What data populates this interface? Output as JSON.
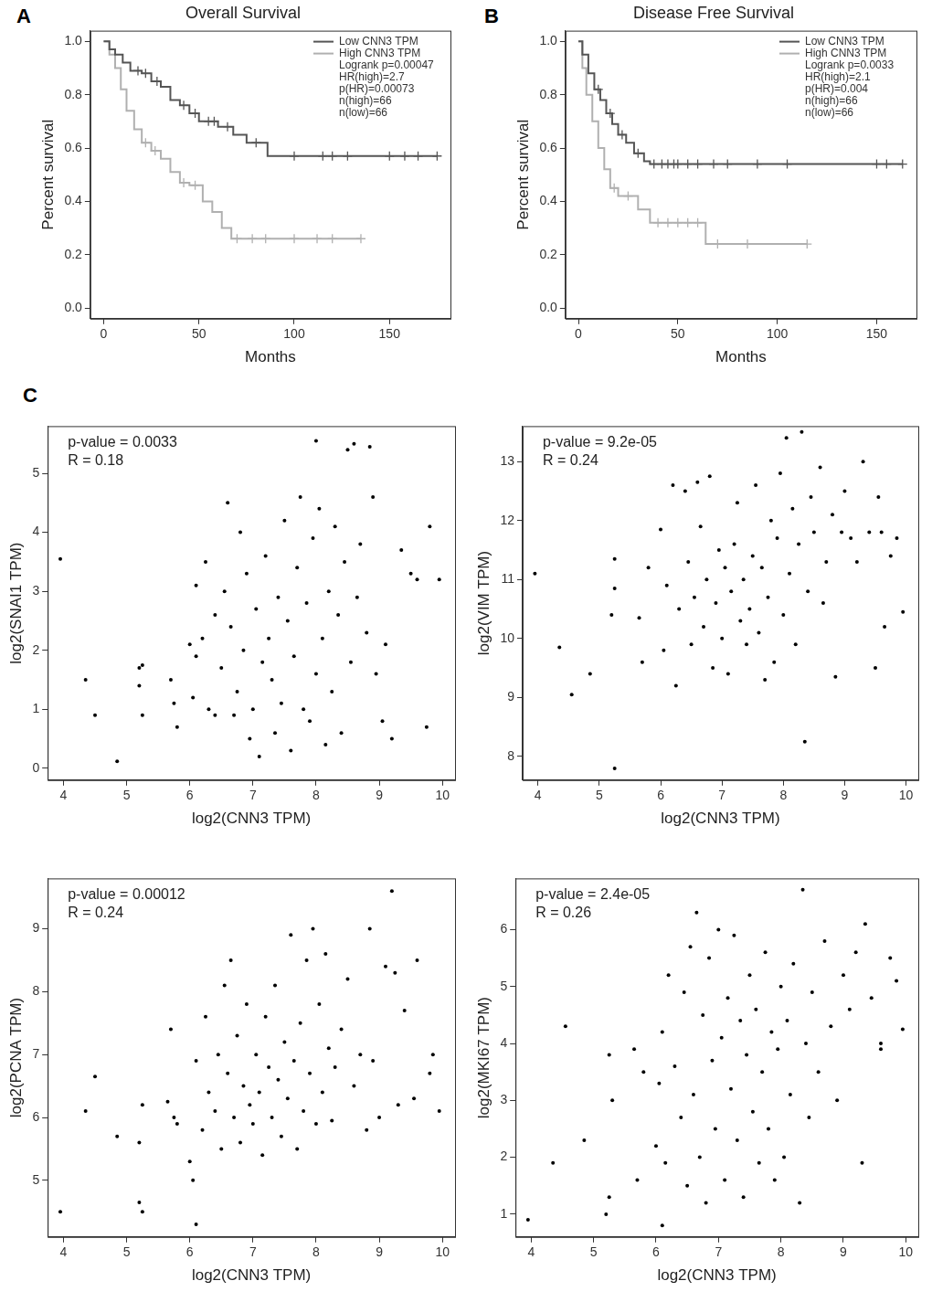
{
  "chart_data": [
    {
      "type": "line",
      "panel": "A",
      "title": "Overall Survival",
      "x_label": "Months",
      "y_label": "Percent survival",
      "xlim": [
        -7,
        182
      ],
      "xticks": [
        0,
        50,
        100,
        150
      ],
      "ylim": [
        -0.04,
        1.04
      ],
      "yticks": [
        {
          "value": 0,
          "label": "0.0"
        },
        {
          "value": 0.2,
          "label": "0.2"
        },
        {
          "value": 0.4,
          "label": "0.4"
        },
        {
          "value": 0.6,
          "label": "0.6"
        },
        {
          "value": 0.8,
          "label": "0.8"
        },
        {
          "value": 1,
          "label": "1.0"
        }
      ],
      "grid": false,
      "legend": "top right",
      "line_style": "step",
      "marker": "cross",
      "annotations": [
        "Logrank p=0.00047",
        "HR(high)=2.7",
        "p(HR)=0.00073",
        "n(high)=66",
        "n(low)=66"
      ],
      "series": [
        {
          "name": "Low CNN3 TPM",
          "color": "#555555",
          "x": [
            0,
            3,
            6,
            10,
            14,
            20,
            25,
            30,
            35,
            40,
            45,
            50,
            60,
            68,
            75,
            86,
            175
          ],
          "values": [
            1,
            0.97,
            0.95,
            0.92,
            0.89,
            0.88,
            0.85,
            0.83,
            0.78,
            0.76,
            0.73,
            0.7,
            0.68,
            0.65,
            0.62,
            0.57,
            0.57
          ],
          "censored_x": [
            18,
            22,
            28,
            42,
            48,
            55,
            58,
            65,
            80,
            100,
            115,
            120,
            128,
            150,
            158,
            165,
            175
          ],
          "censored_values": [
            0.89,
            0.88,
            0.85,
            0.76,
            0.73,
            0.7,
            0.7,
            0.68,
            0.62,
            0.57,
            0.57,
            0.57,
            0.57,
            0.57,
            0.57,
            0.57,
            0.57
          ]
        },
        {
          "name": "High CNN3 TPM",
          "color": "#b0b0b0",
          "x": [
            0,
            3,
            6,
            9,
            12,
            16,
            20,
            25,
            30,
            35,
            40,
            45,
            52,
            57,
            62,
            67,
            135
          ],
          "values": [
            1,
            0.95,
            0.9,
            0.82,
            0.74,
            0.67,
            0.62,
            0.59,
            0.56,
            0.51,
            0.47,
            0.46,
            0.4,
            0.36,
            0.3,
            0.26,
            0.26
          ],
          "censored_x": [
            22,
            27,
            42,
            48,
            70,
            78,
            85,
            100,
            112,
            120,
            135
          ],
          "censored_values": [
            0.62,
            0.59,
            0.47,
            0.46,
            0.26,
            0.26,
            0.26,
            0.26,
            0.26,
            0.26,
            0.26
          ]
        }
      ]
    },
    {
      "type": "line",
      "panel": "B",
      "title": "Disease Free Survival",
      "x_label": "Months",
      "y_label": "Percent survival",
      "xlim": [
        -6.5,
        170
      ],
      "xticks": [
        0,
        50,
        100,
        150
      ],
      "ylim": [
        -0.04,
        1.04
      ],
      "yticks": [
        {
          "value": 0,
          "label": "0.0"
        },
        {
          "value": 0.2,
          "label": "0.2"
        },
        {
          "value": 0.4,
          "label": "0.4"
        },
        {
          "value": 0.6,
          "label": "0.6"
        },
        {
          "value": 0.8,
          "label": "0.8"
        },
        {
          "value": 1,
          "label": "1.0"
        }
      ],
      "grid": false,
      "legend": "top right",
      "line_style": "step",
      "marker": "cross",
      "annotations": [
        "Logrank p=0.0033",
        "HR(high)=2.1",
        "p(HR)=0.004",
        "n(high)=66",
        "n(low)=66"
      ],
      "series": [
        {
          "name": "Low CNN3 TPM",
          "color": "#555555",
          "x": [
            0,
            2,
            5,
            8,
            11,
            14,
            17,
            20,
            24,
            28,
            33,
            36,
            163
          ],
          "values": [
            1,
            0.95,
            0.88,
            0.82,
            0.78,
            0.73,
            0.69,
            0.65,
            0.62,
            0.58,
            0.55,
            0.54,
            0.54
          ],
          "censored_x": [
            10,
            16,
            22,
            30,
            38,
            42,
            45,
            48,
            50,
            55,
            60,
            68,
            75,
            90,
            105,
            150,
            155,
            163
          ],
          "censored_values": [
            0.82,
            0.73,
            0.65,
            0.58,
            0.54,
            0.54,
            0.54,
            0.54,
            0.54,
            0.54,
            0.54,
            0.54,
            0.54,
            0.54,
            0.54,
            0.54,
            0.54,
            0.54
          ]
        },
        {
          "name": "High CNN3 TPM",
          "color": "#b0b0b0",
          "x": [
            0,
            2,
            4,
            7,
            10,
            13,
            16,
            20,
            30,
            36,
            64,
            115
          ],
          "values": [
            1,
            0.9,
            0.8,
            0.7,
            0.6,
            0.52,
            0.45,
            0.42,
            0.37,
            0.32,
            0.24,
            0.24
          ],
          "censored_x": [
            18,
            25,
            40,
            45,
            50,
            55,
            60,
            70,
            85,
            115
          ],
          "censored_values": [
            0.45,
            0.42,
            0.32,
            0.32,
            0.32,
            0.32,
            0.32,
            0.24,
            0.24,
            0.24
          ]
        }
      ]
    },
    {
      "type": "scatter",
      "panel": "C",
      "x_label": "log2(CNN3 TPM)",
      "y_label": "log2(SNAI1 TPM)",
      "xlim": [
        3.75,
        10.2
      ],
      "xticks": [
        4,
        5,
        6,
        7,
        8,
        9,
        10
      ],
      "ylim": [
        -0.2,
        5.8
      ],
      "yticks": [
        0,
        1,
        2,
        3,
        4,
        5
      ],
      "grid": false,
      "color": "#000000",
      "marker": "circle",
      "annotations": [
        "p-value = 0.0033",
        "R = 0.18"
      ],
      "x": [
        3.95,
        4.35,
        4.5,
        4.85,
        5.2,
        5.2,
        5.25,
        5.25,
        5.7,
        5.75,
        5.8,
        6.0,
        6.05,
        6.1,
        6.1,
        6.2,
        6.25,
        6.3,
        6.4,
        6.4,
        6.5,
        6.55,
        6.6,
        6.65,
        6.7,
        6.75,
        6.8,
        6.85,
        6.9,
        6.95,
        7.0,
        7.05,
        7.1,
        7.15,
        7.2,
        7.25,
        7.3,
        7.35,
        7.4,
        7.45,
        7.5,
        7.55,
        7.6,
        7.65,
        7.7,
        7.75,
        7.8,
        7.85,
        7.9,
        7.95,
        8.0,
        8.0,
        8.05,
        8.1,
        8.15,
        8.2,
        8.25,
        8.3,
        8.35,
        8.4,
        8.45,
        8.5,
        8.55,
        8.6,
        8.65,
        8.7,
        8.8,
        8.85,
        8.9,
        8.95,
        9.05,
        9.1,
        9.2,
        9.35,
        9.5,
        9.6,
        9.75,
        9.8,
        9.95
      ],
      "values": [
        3.55,
        1.5,
        0.9,
        0.12,
        1.7,
        1.4,
        1.75,
        0.9,
        1.5,
        1.1,
        0.7,
        2.1,
        1.2,
        3.1,
        1.9,
        2.2,
        3.5,
        1.0,
        2.6,
        0.9,
        1.7,
        3.0,
        4.5,
        2.4,
        0.9,
        1.3,
        4.0,
        2.0,
        3.3,
        0.5,
        1.0,
        2.7,
        0.2,
        1.8,
        3.6,
        2.2,
        1.5,
        0.6,
        2.9,
        1.1,
        4.2,
        2.5,
        0.3,
        1.9,
        3.4,
        4.6,
        1.0,
        2.8,
        0.8,
        3.9,
        5.55,
        1.6,
        4.4,
        2.2,
        0.4,
        3.0,
        1.3,
        4.1,
        2.6,
        0.6,
        3.5,
        5.4,
        1.8,
        5.5,
        2.9,
        3.8,
        2.3,
        5.45,
        4.6,
        1.6,
        0.8,
        2.1,
        0.5,
        3.7,
        3.3,
        3.2,
        0.7,
        4.1,
        3.2
      ]
    },
    {
      "type": "scatter",
      "x_label": "log2(CNN3 TPM)",
      "y_label": "log2(VIM TPM)",
      "xlim": [
        3.75,
        10.2
      ],
      "xticks": [
        4,
        5,
        6,
        7,
        8,
        9,
        10
      ],
      "ylim": [
        7.6,
        13.6
      ],
      "yticks": [
        8,
        9,
        10,
        11,
        12,
        13
      ],
      "grid": false,
      "color": "#000000",
      "marker": "circle",
      "annotations": [
        "p-value = 9.2e-05",
        "R = 0.24"
      ],
      "x": [
        3.95,
        4.35,
        4.55,
        4.85,
        5.25,
        5.25,
        5.25,
        5.2,
        5.65,
        5.7,
        5.8,
        6.0,
        6.05,
        6.1,
        6.2,
        6.25,
        6.3,
        6.4,
        6.45,
        6.5,
        6.55,
        6.6,
        6.65,
        6.7,
        6.75,
        6.8,
        6.85,
        6.9,
        6.95,
        7.0,
        7.05,
        7.1,
        7.15,
        7.2,
        7.25,
        7.3,
        7.35,
        7.4,
        7.45,
        7.5,
        7.55,
        7.6,
        7.65,
        7.7,
        7.75,
        7.8,
        7.85,
        7.9,
        7.95,
        8.0,
        8.05,
        8.1,
        8.15,
        8.2,
        8.25,
        8.3,
        8.35,
        8.4,
        8.45,
        8.5,
        8.6,
        8.65,
        8.7,
        8.8,
        8.85,
        8.95,
        9.0,
        9.1,
        9.2,
        9.3,
        9.4,
        9.5,
        9.55,
        9.6,
        9.65,
        9.75,
        9.85,
        9.95
      ],
      "values": [
        11.1,
        9.85,
        9.05,
        9.4,
        11.35,
        10.85,
        7.8,
        10.4,
        10.35,
        9.6,
        11.2,
        11.85,
        9.8,
        10.9,
        12.6,
        9.2,
        10.5,
        12.5,
        11.3,
        9.9,
        10.7,
        12.65,
        11.9,
        10.2,
        11.0,
        12.75,
        9.5,
        10.6,
        11.5,
        10.0,
        11.2,
        9.4,
        10.8,
        11.6,
        12.3,
        10.3,
        11.0,
        9.9,
        10.5,
        11.4,
        12.6,
        10.1,
        11.2,
        9.3,
        10.7,
        12.0,
        9.6,
        11.7,
        12.8,
        10.4,
        13.4,
        11.1,
        12.2,
        9.9,
        11.6,
        13.5,
        8.25,
        10.8,
        12.4,
        11.8,
        12.9,
        10.6,
        11.3,
        12.1,
        9.35,
        11.8,
        12.5,
        11.7,
        11.3,
        13.0,
        11.8,
        9.5,
        12.4,
        11.8,
        10.2,
        11.4,
        11.7,
        10.45
      ]
    },
    {
      "type": "scatter",
      "x_label": "log2(CNN3 TPM)",
      "y_label": "log2(PCNA TPM)",
      "xlim": [
        3.75,
        10.2
      ],
      "xticks": [
        4,
        5,
        6,
        7,
        8,
        9,
        10
      ],
      "ylim": [
        4.1,
        9.8
      ],
      "yticks": [
        5,
        6,
        7,
        8,
        9
      ],
      "grid": false,
      "color": "#000000",
      "marker": "circle",
      "annotations": [
        "p-value = 0.00012",
        "R = 0.24"
      ],
      "x": [
        3.95,
        4.35,
        4.5,
        4.85,
        5.2,
        5.25,
        5.2,
        5.25,
        5.65,
        5.7,
        5.75,
        5.8,
        6.0,
        6.05,
        6.1,
        6.1,
        6.2,
        6.25,
        6.3,
        6.4,
        6.45,
        6.5,
        6.55,
        6.6,
        6.65,
        6.7,
        6.75,
        6.8,
        6.85,
        6.9,
        6.95,
        7.0,
        7.05,
        7.1,
        7.15,
        7.2,
        7.25,
        7.3,
        7.35,
        7.4,
        7.45,
        7.5,
        7.55,
        7.6,
        7.65,
        7.7,
        7.75,
        7.8,
        7.85,
        7.9,
        7.95,
        8.0,
        8.05,
        8.1,
        8.15,
        8.2,
        8.25,
        8.3,
        8.4,
        8.5,
        8.6,
        8.7,
        8.8,
        8.85,
        8.9,
        9.0,
        9.1,
        9.2,
        9.25,
        9.3,
        9.4,
        9.55,
        9.6,
        9.8,
        9.85,
        9.95
      ],
      "values": [
        4.5,
        6.1,
        6.65,
        5.7,
        4.65,
        4.5,
        5.6,
        6.2,
        6.25,
        7.4,
        6.0,
        5.9,
        5.3,
        5.0,
        4.3,
        6.9,
        5.8,
        7.6,
        6.4,
        6.1,
        7.0,
        5.5,
        8.1,
        6.7,
        8.5,
        6.0,
        7.3,
        5.6,
        6.5,
        7.8,
        6.2,
        5.9,
        7.0,
        6.4,
        5.4,
        7.6,
        6.8,
        6.0,
        8.1,
        6.6,
        5.7,
        7.2,
        6.3,
        8.9,
        6.9,
        5.5,
        7.5,
        6.1,
        8.5,
        6.7,
        9.0,
        5.9,
        7.8,
        6.4,
        8.6,
        7.1,
        5.95,
        6.8,
        7.4,
        8.2,
        6.5,
        7.0,
        5.8,
        9.0,
        6.9,
        6.0,
        8.4,
        9.6,
        8.3,
        6.2,
        7.7,
        6.3,
        8.5,
        6.7,
        7.0,
        6.1
      ]
    },
    {
      "type": "scatter",
      "x_label": "log2(CNN3 TPM)",
      "y_label": "log2(MKI67 TPM)",
      "xlim": [
        3.75,
        10.2
      ],
      "xticks": [
        4,
        5,
        6,
        7,
        8,
        9,
        10
      ],
      "ylim": [
        0.6,
        6.9
      ],
      "yticks": [
        1,
        2,
        3,
        4,
        5,
        6
      ],
      "grid": false,
      "color": "#000000",
      "marker": "circle",
      "annotations": [
        "p-value = 2.4e-05",
        "R = 0.26"
      ],
      "x": [
        3.95,
        4.35,
        4.55,
        4.85,
        5.2,
        5.25,
        5.25,
        5.3,
        5.65,
        5.7,
        5.8,
        6.0,
        6.05,
        6.1,
        6.1,
        6.15,
        6.2,
        6.3,
        6.4,
        6.45,
        6.5,
        6.55,
        6.6,
        6.65,
        6.7,
        6.75,
        6.8,
        6.85,
        6.9,
        6.95,
        7.0,
        7.05,
        7.1,
        7.15,
        7.2,
        7.25,
        7.3,
        7.35,
        7.4,
        7.45,
        7.5,
        7.55,
        7.6,
        7.65,
        7.7,
        7.75,
        7.8,
        7.85,
        7.9,
        7.95,
        8.0,
        8.05,
        8.1,
        8.15,
        8.2,
        8.3,
        8.35,
        8.4,
        8.45,
        8.5,
        8.6,
        8.7,
        8.8,
        8.9,
        9.0,
        9.1,
        9.2,
        9.3,
        9.35,
        9.45,
        9.6,
        9.6,
        9.75,
        9.85,
        9.95
      ],
      "values": [
        0.9,
        1.9,
        4.3,
        2.3,
        1.0,
        1.3,
        3.8,
        3.0,
        3.9,
        1.6,
        3.5,
        2.2,
        3.3,
        0.8,
        4.2,
        1.9,
        5.2,
        3.6,
        2.7,
        4.9,
        1.5,
        5.7,
        3.1,
        6.3,
        2.0,
        4.5,
        1.2,
        5.5,
        3.7,
        2.5,
        6.0,
        4.1,
        1.6,
        4.8,
        3.2,
        5.9,
        2.3,
        4.4,
        1.3,
        3.8,
        5.2,
        2.8,
        4.6,
        1.9,
        3.5,
        5.6,
        2.5,
        4.2,
        1.6,
        3.9,
        5.0,
        2.0,
        4.4,
        3.1,
        5.4,
        1.2,
        6.7,
        4.0,
        2.7,
        4.9,
        3.5,
        5.8,
        4.3,
        3.0,
        5.2,
        4.6,
        5.6,
        1.9,
        6.1,
        4.8,
        3.9,
        4.0,
        5.5,
        5.1,
        4.25
      ]
    }
  ]
}
